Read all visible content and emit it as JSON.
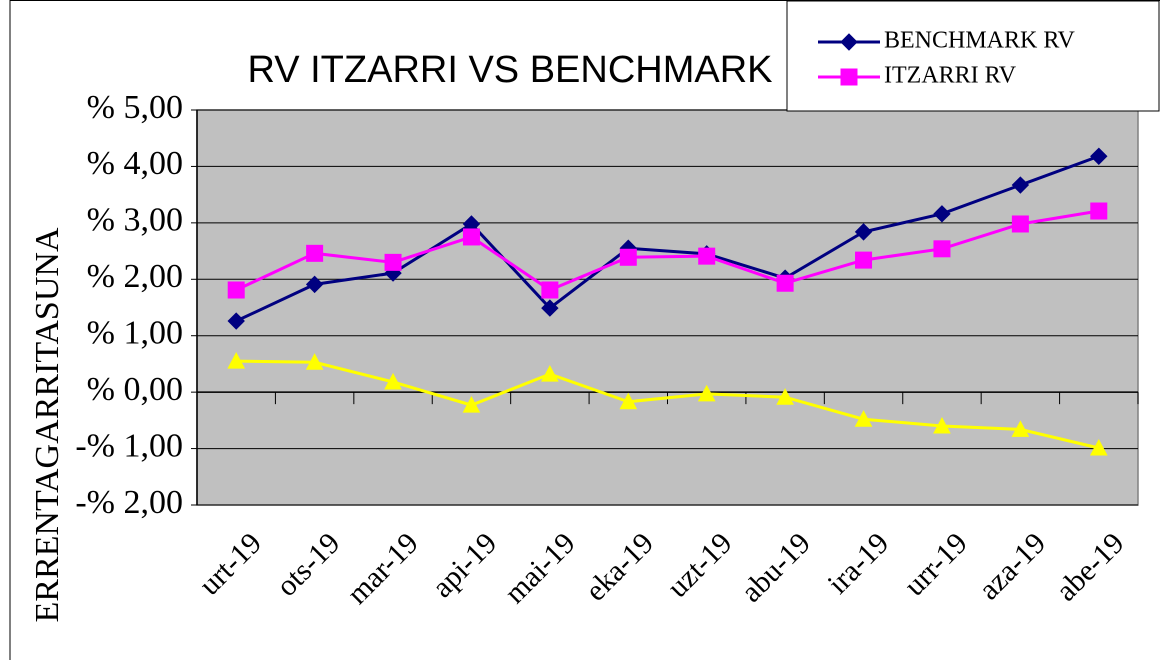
{
  "chart_data": {
    "type": "line",
    "title": "RV ITZARRI VS BENCHMARK",
    "y_label": "ERRENTAGARRITASUNA",
    "categories": [
      "urt-19",
      "ots-19",
      "mar-19",
      "api-19",
      "mai-19",
      "eka-19",
      "uzt-19",
      "abu-19",
      "ira-19",
      "urr-19",
      "aza-19",
      "abe-19"
    ],
    "series": [
      {
        "name": "BENCHMARK RV",
        "color": "#000080",
        "marker": "diamond",
        "values": [
          1.26,
          1.91,
          2.11,
          2.98,
          1.49,
          2.55,
          2.45,
          2.02,
          2.84,
          3.16,
          3.67,
          4.18
        ]
      },
      {
        "name": "ITZARRI RV",
        "color": "#ff00ff",
        "marker": "square",
        "values": [
          1.81,
          2.46,
          2.3,
          2.75,
          1.81,
          2.39,
          2.41,
          1.93,
          2.34,
          2.54,
          2.98,
          3.21
        ]
      },
      {
        "color": "#ffff00",
        "marker": "triangle",
        "values": [
          0.55,
          0.53,
          0.18,
          -0.23,
          0.32,
          -0.17,
          -0.03,
          -0.09,
          -0.48,
          -0.6,
          -0.66,
          -0.99
        ]
      }
    ],
    "ylim": [
      -2,
      5
    ],
    "yticks": [
      {
        "value": -2,
        "label": "-% 2,00"
      },
      {
        "value": -1,
        "label": "-% 1,00"
      },
      {
        "value": 0,
        "label": "% 0,00"
      },
      {
        "value": 1,
        "label": "% 1,00"
      },
      {
        "value": 2,
        "label": "% 2,00"
      },
      {
        "value": 3,
        "label": "% 3,00"
      },
      {
        "value": 4,
        "label": "% 4,00"
      },
      {
        "value": 5,
        "label": "% 5,00"
      }
    ],
    "grid": true,
    "legend": "top-right",
    "plot_background": "#c0c0c0"
  }
}
